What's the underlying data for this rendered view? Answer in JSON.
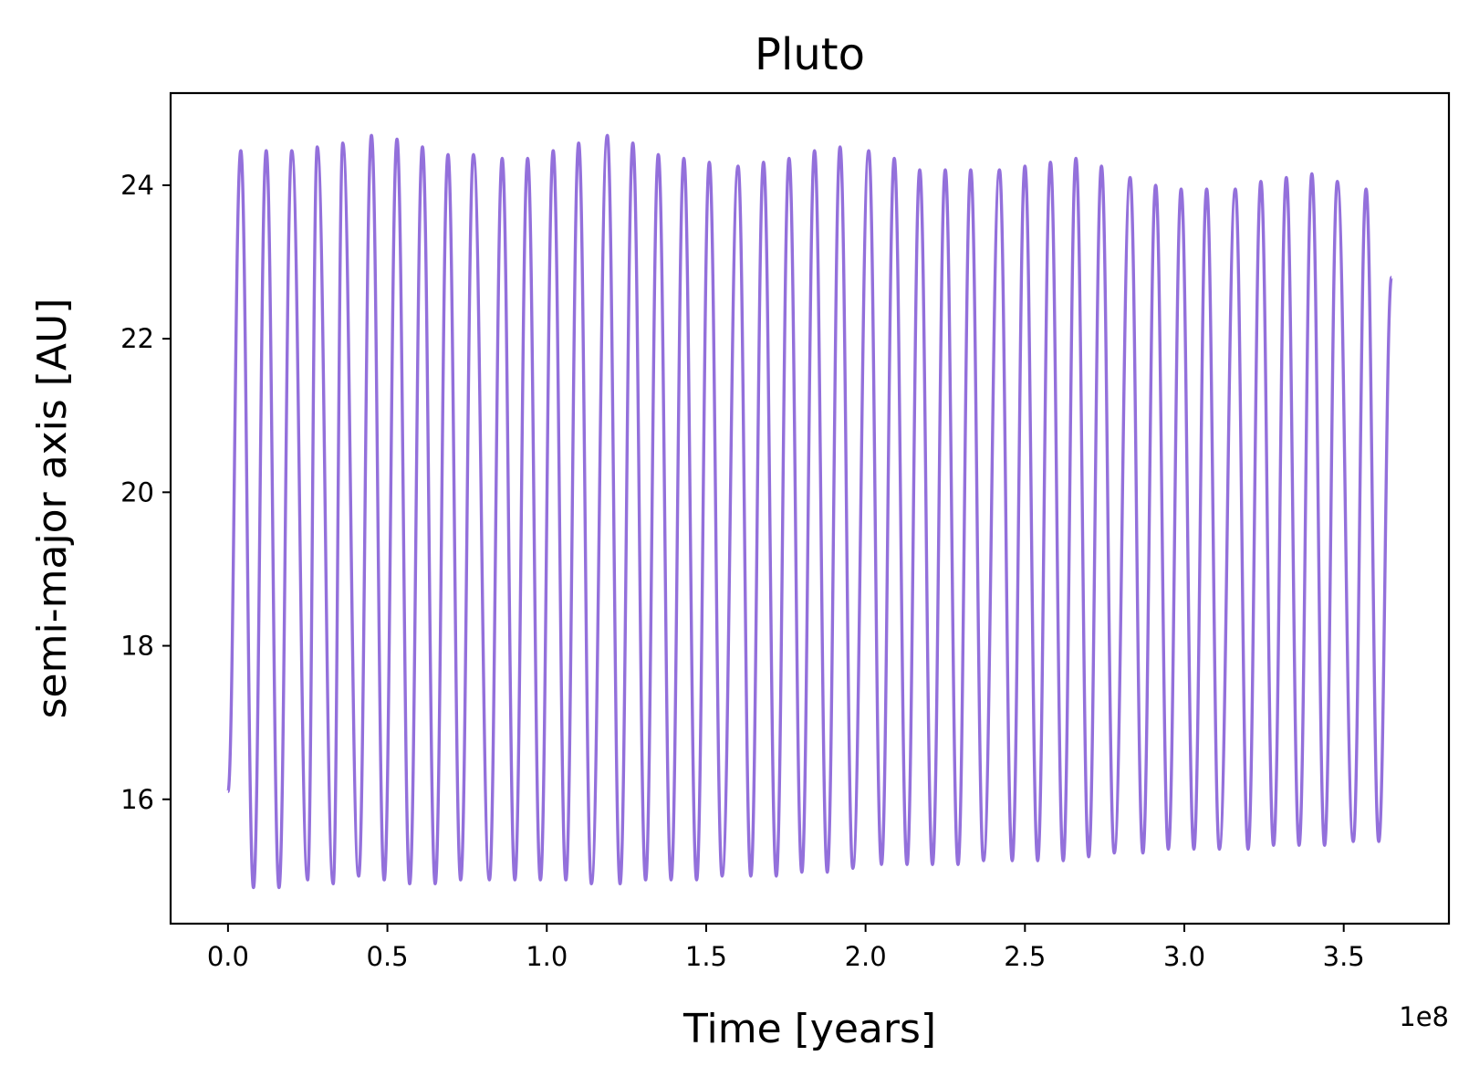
{
  "chart_data": {
    "type": "line",
    "title": "Pluto",
    "xlabel": "Time [years]",
    "ylabel": "semi-major axis [AU]",
    "x_offset_label": "1e8",
    "xlim": [
      -0.18,
      3.83
    ],
    "ylim": [
      14.38,
      25.2
    ],
    "x_ticks": [
      0.0,
      0.5,
      1.0,
      1.5,
      2.0,
      2.5,
      3.0,
      3.5
    ],
    "x_tick_labels": [
      "0.0",
      "0.5",
      "1.0",
      "1.5",
      "2.0",
      "2.5",
      "3.0",
      "3.5"
    ],
    "y_ticks": [
      16,
      18,
      20,
      22,
      24
    ],
    "y_tick_labels": [
      "16",
      "18",
      "20",
      "22",
      "24"
    ],
    "grid": false,
    "legend": "none",
    "x_scale_note": "x values in units of 1e8 years",
    "series": [
      {
        "color": "#9370DB",
        "cycles": {
          "start": [
            0.0,
            16.1
          ],
          "end": [
            3.65,
            22.8
          ],
          "peaks": [
            [
              0.04,
              24.45
            ],
            [
              0.12,
              24.45
            ],
            [
              0.2,
              24.45
            ],
            [
              0.28,
              24.5
            ],
            [
              0.36,
              24.55
            ],
            [
              0.45,
              24.65
            ],
            [
              0.53,
              24.6
            ],
            [
              0.61,
              24.5
            ],
            [
              0.69,
              24.4
            ],
            [
              0.77,
              24.4
            ],
            [
              0.86,
              24.35
            ],
            [
              0.94,
              24.35
            ],
            [
              1.02,
              24.45
            ],
            [
              1.1,
              24.55
            ],
            [
              1.19,
              24.65
            ],
            [
              1.27,
              24.55
            ],
            [
              1.35,
              24.4
            ],
            [
              1.43,
              24.35
            ],
            [
              1.51,
              24.3
            ],
            [
              1.6,
              24.25
            ],
            [
              1.68,
              24.3
            ],
            [
              1.76,
              24.35
            ],
            [
              1.84,
              24.45
            ],
            [
              1.92,
              24.5
            ],
            [
              2.01,
              24.45
            ],
            [
              2.09,
              24.35
            ],
            [
              2.17,
              24.2
            ],
            [
              2.25,
              24.2
            ],
            [
              2.33,
              24.2
            ],
            [
              2.42,
              24.2
            ],
            [
              2.5,
              24.25
            ],
            [
              2.58,
              24.3
            ],
            [
              2.66,
              24.35
            ],
            [
              2.74,
              24.25
            ],
            [
              2.83,
              24.1
            ],
            [
              2.91,
              24.0
            ],
            [
              2.99,
              23.95
            ],
            [
              3.07,
              23.95
            ],
            [
              3.16,
              23.95
            ],
            [
              3.24,
              24.05
            ],
            [
              3.32,
              24.1
            ],
            [
              3.4,
              24.15
            ],
            [
              3.48,
              24.05
            ],
            [
              3.57,
              23.95
            ]
          ],
          "troughs": [
            [
              0.08,
              14.85
            ],
            [
              0.16,
              14.85
            ],
            [
              0.25,
              14.95
            ],
            [
              0.33,
              14.9
            ],
            [
              0.41,
              15.0
            ],
            [
              0.49,
              14.95
            ],
            [
              0.57,
              14.9
            ],
            [
              0.65,
              14.9
            ],
            [
              0.73,
              14.95
            ],
            [
              0.82,
              14.95
            ],
            [
              0.9,
              14.95
            ],
            [
              0.98,
              14.95
            ],
            [
              1.06,
              14.95
            ],
            [
              1.14,
              14.9
            ],
            [
              1.23,
              14.9
            ],
            [
              1.31,
              14.95
            ],
            [
              1.39,
              14.95
            ],
            [
              1.47,
              14.95
            ],
            [
              1.55,
              15.0
            ],
            [
              1.64,
              15.0
            ],
            [
              1.72,
              15.0
            ],
            [
              1.8,
              15.05
            ],
            [
              1.88,
              15.05
            ],
            [
              1.96,
              15.1
            ],
            [
              2.05,
              15.15
            ],
            [
              2.13,
              15.15
            ],
            [
              2.21,
              15.15
            ],
            [
              2.29,
              15.15
            ],
            [
              2.37,
              15.2
            ],
            [
              2.46,
              15.2
            ],
            [
              2.54,
              15.2
            ],
            [
              2.62,
              15.2
            ],
            [
              2.7,
              15.25
            ],
            [
              2.78,
              15.3
            ],
            [
              2.87,
              15.3
            ],
            [
              2.95,
              15.35
            ],
            [
              3.03,
              15.35
            ],
            [
              3.11,
              15.35
            ],
            [
              3.2,
              15.35
            ],
            [
              3.28,
              15.4
            ],
            [
              3.36,
              15.4
            ],
            [
              3.44,
              15.4
            ],
            [
              3.53,
              15.45
            ],
            [
              3.61,
              15.45
            ]
          ]
        }
      }
    ]
  }
}
